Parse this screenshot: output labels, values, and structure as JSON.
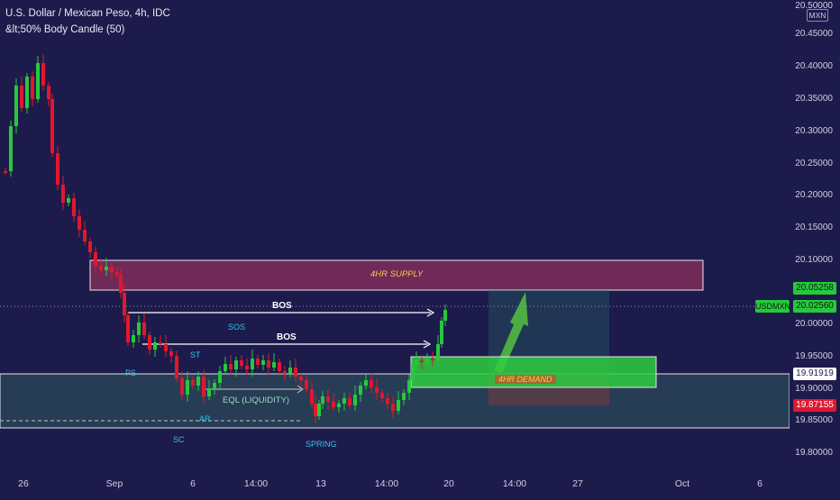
{
  "header": {
    "symbol_title": "U.S. Dollar / Mexican Peso, 4h, IDC",
    "indicator": "&lt;50% Body Candle (50)"
  },
  "currency": "MXN",
  "price_axis": {
    "ticks": [
      "20.50000",
      "20.45000",
      "20.40000",
      "20.35000",
      "20.30000",
      "20.25000",
      "20.20000",
      "20.15000",
      "20.10000",
      "20.05000",
      "20.00000",
      "19.95000",
      "19.90000",
      "19.85000",
      "19.80000"
    ]
  },
  "price_tags": {
    "high_label": "20.05258",
    "symbol": "USDMXN",
    "last_price": "20.02560",
    "level_1": "19.91919",
    "level_2": "19.87155"
  },
  "time_axis": {
    "labels": [
      "26",
      "Sep",
      "6",
      "14:00",
      "13",
      "14:00",
      "20",
      "14:00",
      "27",
      "Oct",
      "6"
    ]
  },
  "annotations": {
    "supply_zone": "4HR SUPPLY",
    "demand_zone": "4HR DEMAND",
    "bos_1": "BOS",
    "bos_2": "BOS",
    "eql": "EQL (LIQUIDITY)",
    "wyckoff": {
      "ps": "PS",
      "sc": "SC",
      "ar": "AR",
      "st": "ST",
      "sos": "SOS",
      "spring": "SPRING"
    }
  },
  "colors": {
    "background": "#1d1b4b",
    "bull_candle": "#26c93c",
    "bear_candle": "#e0182d",
    "supply_fill": "#7e2d5a",
    "demand_fill": "#2ecc40",
    "range_fill": "#2f5a5e",
    "label_cyan": "#2ec4e6",
    "supply_text": "#f7c948"
  }
}
